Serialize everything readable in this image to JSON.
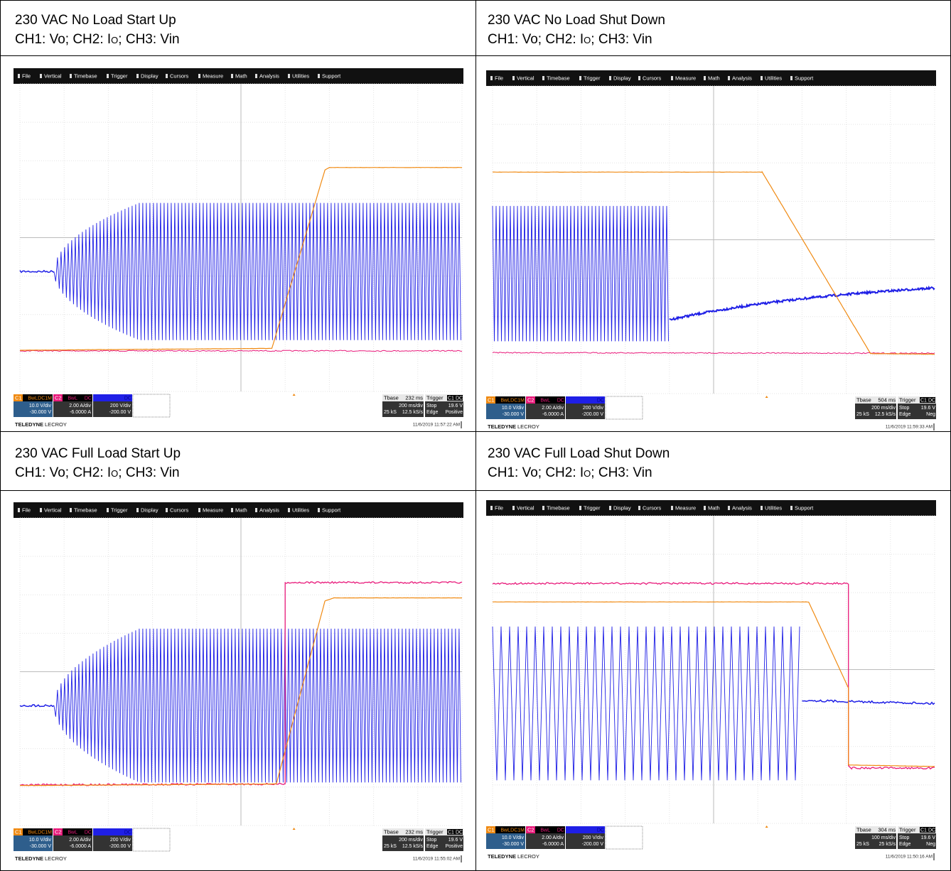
{
  "menu": [
    "File",
    "Vertical",
    "Timebase",
    "Trigger",
    "Display",
    "Cursors",
    "Measure",
    "Math",
    "Analysis",
    "Utilities",
    "Support"
  ],
  "channels": [
    {
      "name": "C1",
      "tags": [
        "BwL",
        "DC1M"
      ],
      "scale": "10.0 V/div",
      "offset": "-30.000 V"
    },
    {
      "name": "C2",
      "tags": [
        "BwL",
        "DC"
      ],
      "scale": "2.00 A/div",
      "offset": "-6.0000 A"
    },
    {
      "tags": [
        "DC"
      ],
      "scale": "200 V/div",
      "offset": "-200.00 V"
    }
  ],
  "tbase_label": "Tbase",
  "trigger_label": "Trigger",
  "trigger_source": [
    "C1",
    "DC"
  ],
  "brand": [
    "TELEDYNE",
    "LECROY"
  ],
  "cells": [
    {
      "title": "230 VAC No Load Start Up",
      "subtitle": [
        "CH1: Vo; CH2: I",
        "O",
        "; CH3: Vin"
      ],
      "scope": {
        "tbase": "232 ms",
        "scale": "200 ms/div",
        "samples": "25 kS",
        "rate": "12.5 kS/s",
        "mode": "Stop",
        "level": "19.6 V",
        "type": "Edge",
        "slope": "Positive",
        "timestamp": "11/6/2019 11:57:22 AM"
      }
    },
    {
      "title": "230 VAC No Load Shut Down",
      "subtitle": [
        "CH1: Vo; CH2: I",
        "O",
        "; CH3: Vin"
      ],
      "scope": {
        "tbase": "504 ms",
        "scale": "200 ms/div",
        "samples": "25 kS",
        "rate": "12.5 kS/s",
        "mode": "Stop",
        "level": "19.6 V",
        "type": "Edge",
        "slope": "Neg",
        "timestamp": "11/6/2019 11:59:33 AM"
      }
    },
    {
      "title": "230 VAC Full Load Start Up",
      "subtitle": [
        "CH1: Vo; CH2: I",
        "O",
        "; CH3: Vin"
      ],
      "scope": {
        "tbase": "232 ms",
        "scale": "200 ms/div",
        "samples": "25 kS",
        "rate": "12.5 kS/s",
        "mode": "Stop",
        "level": "19.6 V",
        "type": "Edge",
        "slope": "Positive",
        "timestamp": "11/6/2019 11:55:02 AM"
      }
    },
    {
      "title": "230 VAC Full Load Shut Down",
      "subtitle": [
        "CH1: Vo; CH2: I",
        "O",
        "; CH3: Vin"
      ],
      "scope": {
        "tbase": "304 ms",
        "scale": "100 ms/div",
        "samples": "25 kS",
        "rate": "25 kS/s",
        "mode": "Stop",
        "level": "19.6 V",
        "type": "Edge",
        "slope": "Neg",
        "timestamp": "11/6/2019 11:50:16 AM"
      }
    }
  ]
}
